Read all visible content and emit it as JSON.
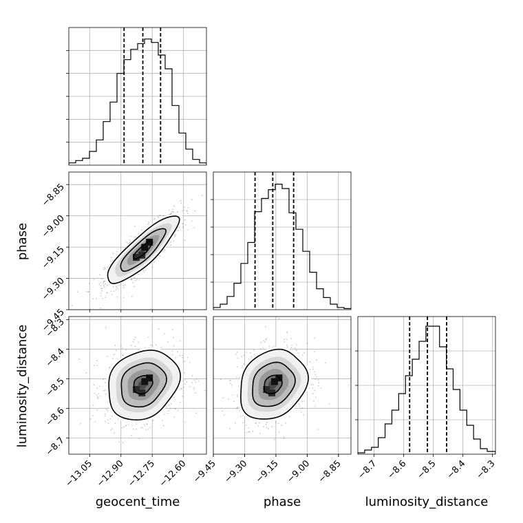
{
  "chart_data": {
    "type": "corner",
    "parameters": [
      "geocent_time",
      "phase",
      "luminosity_distance"
    ],
    "grid": true,
    "ranges": {
      "geocent_time": [
        -13.15,
        -12.49
      ],
      "phase": [
        -9.45,
        -8.79
      ],
      "luminosity_distance": [
        -8.755,
        -8.29
      ]
    },
    "ticks": {
      "geocent_time": [
        -13.05,
        -12.9,
        -12.75,
        -12.6
      ],
      "phase": [
        -9.45,
        -9.3,
        -9.15,
        -9.0,
        -8.85
      ],
      "luminosity_distance": [
        -8.7,
        -8.6,
        -8.5,
        -8.4,
        -8.3
      ]
    },
    "tick_labels": {
      "geocent_time": [
        "−13.05",
        "−12.90",
        "−12.75",
        "−12.60"
      ],
      "phase": [
        "−9.45",
        "−9.30",
        "−9.15",
        "−9.00",
        "−8.85"
      ],
      "luminosity_distance": [
        "−8.7",
        "−8.6",
        "−8.5",
        "−8.4",
        "−8.3"
      ]
    },
    "tick_labels_y": {
      "phase": [
        "−8.85",
        "−9.00",
        "−9.15",
        "−9.30",
        "−9.45"
      ],
      "luminosity_distance": [
        "−8.3",
        "−8.4",
        "−8.5",
        "−8.6",
        "−8.7"
      ]
    },
    "histograms": [
      {
        "parameter": "geocent_time",
        "edges": [
          -13.15,
          -13.117,
          -13.084,
          -13.051,
          -13.018,
          -12.985,
          -12.952,
          -12.919,
          -12.886,
          -12.853,
          -12.82,
          -12.787,
          -12.754,
          -12.721,
          -12.688,
          -12.655,
          -12.622,
          -12.589,
          -12.556,
          -12.523,
          -12.49
        ],
        "counts": [
          2,
          4,
          6,
          12,
          22,
          38,
          55,
          80,
          92,
          101,
          106,
          110,
          107,
          96,
          84,
          52,
          28,
          14,
          5,
          2
        ],
        "quantiles": [
          -12.885,
          -12.795,
          -12.71
        ],
        "ylim": [
          0,
          120
        ]
      },
      {
        "parameter": "phase",
        "edges": [
          -9.45,
          -9.417,
          -9.384,
          -9.351,
          -9.318,
          -9.285,
          -9.252,
          -9.219,
          -9.186,
          -9.153,
          -9.12,
          -9.087,
          -9.054,
          -9.021,
          -8.988,
          -8.955,
          -8.922,
          -8.889,
          -8.856,
          -8.823,
          -8.79
        ],
        "counts": [
          2,
          5,
          12,
          24,
          42,
          61,
          89,
          101,
          109,
          114,
          110,
          88,
          73,
          53,
          34,
          19,
          11,
          5,
          2,
          1
        ],
        "quantiles": [
          -9.25,
          -9.165,
          -9.065
        ],
        "ylim": [
          0,
          125
        ]
      },
      {
        "parameter": "luminosity_distance",
        "edges": [
          -8.755,
          -8.732,
          -8.709,
          -8.686,
          -8.663,
          -8.64,
          -8.617,
          -8.594,
          -8.571,
          -8.548,
          -8.525,
          -8.502,
          -8.479,
          -8.456,
          -8.433,
          -8.41,
          -8.387,
          -8.364,
          -8.341,
          -8.318,
          -8.29
        ],
        "counts": [
          1,
          3,
          5,
          12,
          22,
          32,
          44,
          57,
          69,
          82,
          93,
          93,
          78,
          62,
          47,
          32,
          21,
          11,
          4,
          2
        ],
        "quantiles": [
          -8.58,
          -8.52,
          -8.455
        ],
        "ylim": [
          0,
          100
        ]
      }
    ],
    "contours_2d": [
      {
        "x": "geocent_time",
        "y": "phase",
        "center": [
          -12.795,
          -9.165
        ],
        "sigma": [
          0.09,
          0.085
        ],
        "rho": 0.85,
        "levels": [
          0.5,
          1.2,
          1.9
        ],
        "scatter_points": 1100
      },
      {
        "x": "geocent_time",
        "y": "luminosity_distance",
        "center": [
          -12.795,
          -8.52
        ],
        "sigma": [
          0.09,
          0.062
        ],
        "rho": 0.2,
        "levels": [
          0.5,
          1.2,
          1.9
        ],
        "scatter_points": 1100
      },
      {
        "x": "phase",
        "y": "luminosity_distance",
        "center": [
          -9.165,
          -8.52
        ],
        "sigma": [
          0.085,
          0.062
        ],
        "rho": 0.2,
        "levels": [
          0.5,
          1.2,
          1.9
        ],
        "scatter_points": 1100
      }
    ],
    "xlabels": [
      "geocent_time",
      "phase",
      "luminosity_distance"
    ],
    "ylabels": [
      "phase",
      "luminosity_distance"
    ]
  }
}
